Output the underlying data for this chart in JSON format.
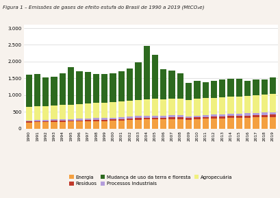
{
  "title": "Figura 1 – Emissões de gases de efeito estufa do Brasil de 1990 a 2019 (MtCO₂e)",
  "years": [
    1990,
    1991,
    1992,
    1993,
    1994,
    1995,
    1996,
    1997,
    1998,
    1999,
    2000,
    2001,
    2002,
    2003,
    2004,
    2005,
    2006,
    2007,
    2008,
    2009,
    2010,
    2011,
    2012,
    2013,
    2014,
    2015,
    2016,
    2017,
    2018,
    2019
  ],
  "energia": [
    190,
    195,
    200,
    205,
    210,
    215,
    220,
    225,
    230,
    230,
    240,
    250,
    260,
    270,
    280,
    280,
    275,
    285,
    290,
    265,
    285,
    295,
    300,
    310,
    315,
    315,
    325,
    335,
    340,
    350
  ],
  "residuos": [
    22,
    24,
    26,
    27,
    28,
    30,
    32,
    34,
    36,
    37,
    40,
    43,
    45,
    48,
    50,
    52,
    50,
    52,
    53,
    50,
    52,
    55,
    57,
    60,
    63,
    64,
    66,
    68,
    70,
    72
  ],
  "processos": [
    40,
    42,
    43,
    44,
    45,
    47,
    48,
    50,
    52,
    50,
    52,
    55,
    57,
    58,
    60,
    60,
    58,
    60,
    61,
    55,
    58,
    60,
    62,
    64,
    66,
    66,
    68,
    70,
    72,
    74
  ],
  "agropecuaria": [
    400,
    405,
    410,
    415,
    420,
    430,
    440,
    445,
    450,
    450,
    460,
    465,
    470,
    480,
    490,
    500,
    490,
    495,
    500,
    485,
    495,
    500,
    505,
    510,
    515,
    515,
    520,
    525,
    530,
    535
  ],
  "mudanca": [
    950,
    960,
    850,
    860,
    950,
    1120,
    980,
    940,
    870,
    870,
    870,
    910,
    970,
    1120,
    1580,
    1320,
    900,
    850,
    750,
    510,
    540,
    480,
    500,
    530,
    520,
    520,
    450,
    470,
    460,
    500
  ],
  "color_energia": "#f4a040",
  "color_residuos": "#c0392b",
  "color_processos": "#b39ddb",
  "color_agropecuaria": "#f0f080",
  "color_mudanca": "#2d6a1f",
  "background": "#f7f2ed",
  "ylim": [
    0,
    3100
  ],
  "yticks": [
    0,
    500,
    1000,
    1500,
    2000,
    2500,
    3000
  ],
  "ytick_labels": [
    "0",
    "500",
    "1.000",
    "1.500",
    "2.000",
    "2.500",
    "3.000"
  ],
  "legend_energia": "Energia",
  "legend_residuos": "Resíduos",
  "legend_mudanca": "Mudança de uso da terra e floresta",
  "legend_processos": "Processos Industriais",
  "legend_agropecuaria": "Agropecuária"
}
